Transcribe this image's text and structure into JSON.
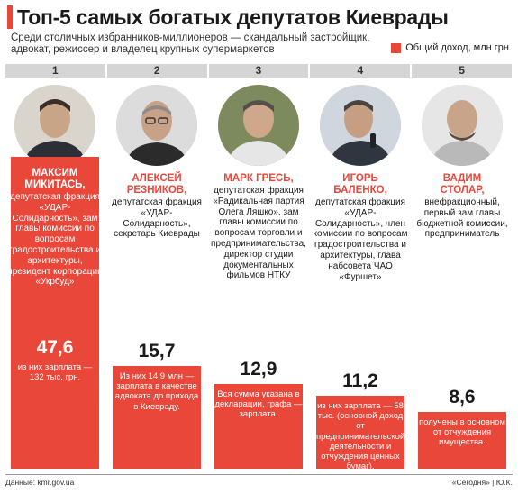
{
  "title": "Топ-5 самых богатых депутатов Киеврады",
  "subtitle": "Среди столичных избранников-миллионеров — скандальный застройщик, адвокат, режиссер и владелец крупных супермаркетов",
  "legend_label": "Общий доход, млн грн",
  "colors": {
    "accent": "#e8473a",
    "rank_strip": "#d5d5d5"
  },
  "chart_data": {
    "type": "bar",
    "title": "Топ-5 самых богатых депутатов Киеврады",
    "categories": [
      "МАКСИМ МИКИТАСЬ",
      "АЛЕКСЕЙ РЕЗНИКОВ",
      "МАРК ГРЕСЬ",
      "ИГОРЬ БАЛЕНКО",
      "ВАДИМ СТОЛАР"
    ],
    "series": [
      {
        "name": "Общий доход, млн грн",
        "values": [
          47.6,
          15.7,
          12.9,
          11.2,
          8.6
        ]
      }
    ],
    "ylim": [
      0,
      47.6
    ],
    "legend": "top-right",
    "grid": false
  },
  "deputies": [
    {
      "rank": "1",
      "name1": "МАКСИМ",
      "name2": "МИКИТАСЬ,",
      "desc": "депутатская фракция «УДАР-Солидарность», зам главы комиссии по вопросам градостроительства и архитектуры, президент корпорации «Укрбуд»",
      "value_label": "47,6",
      "note": "из них зарплата — 132 тыс. грн."
    },
    {
      "rank": "2",
      "name1": "АЛЕКСЕЙ",
      "name2": "РЕЗНИКОВ,",
      "desc": "депутатская фракция «УДАР-Солидарность», секретарь Киеврады",
      "value_label": "15,7",
      "note": "Из них 14,9 млн — зарплата в качестве адвоката до прихода в Киевраду."
    },
    {
      "rank": "3",
      "name1": "МАРК ГРЕСЬ,",
      "name2": "",
      "desc": "депутатская фракция «Радикальная партия Олега Ляшко», зам главы комиссии по вопросам торговли и предпринимательства, директор студии документальных фильмов НТКУ",
      "value_label": "12,9",
      "note": "Вся сумма указана в декларации, графа — зарплата."
    },
    {
      "rank": "4",
      "name1": "ИГОРЬ",
      "name2": "БАЛЕНКО,",
      "desc": "депутатская фракция «УДАР-Солидарность», член комиссии по вопросам градостроительства и архитектуры, глава набсовета ЧАО «Фуршет»",
      "value_label": "11,2",
      "note": "из них зарплата — 58 тыс. (основной доход от предпринимательской деятельности и отчуждения ценных бумаг)."
    },
    {
      "rank": "5",
      "name1": "ВАДИМ",
      "name2": "СТОЛАР,",
      "desc": "внефракционный, первый зам главы бюджетной комиссии, предприниматель",
      "value_label": "8,6",
      "note": "получены в основном от отчуждения имущества."
    }
  ],
  "footer": {
    "source": "Данные: kmr.gov.ua",
    "credit": "«Сегодня» | Ю.К."
  }
}
